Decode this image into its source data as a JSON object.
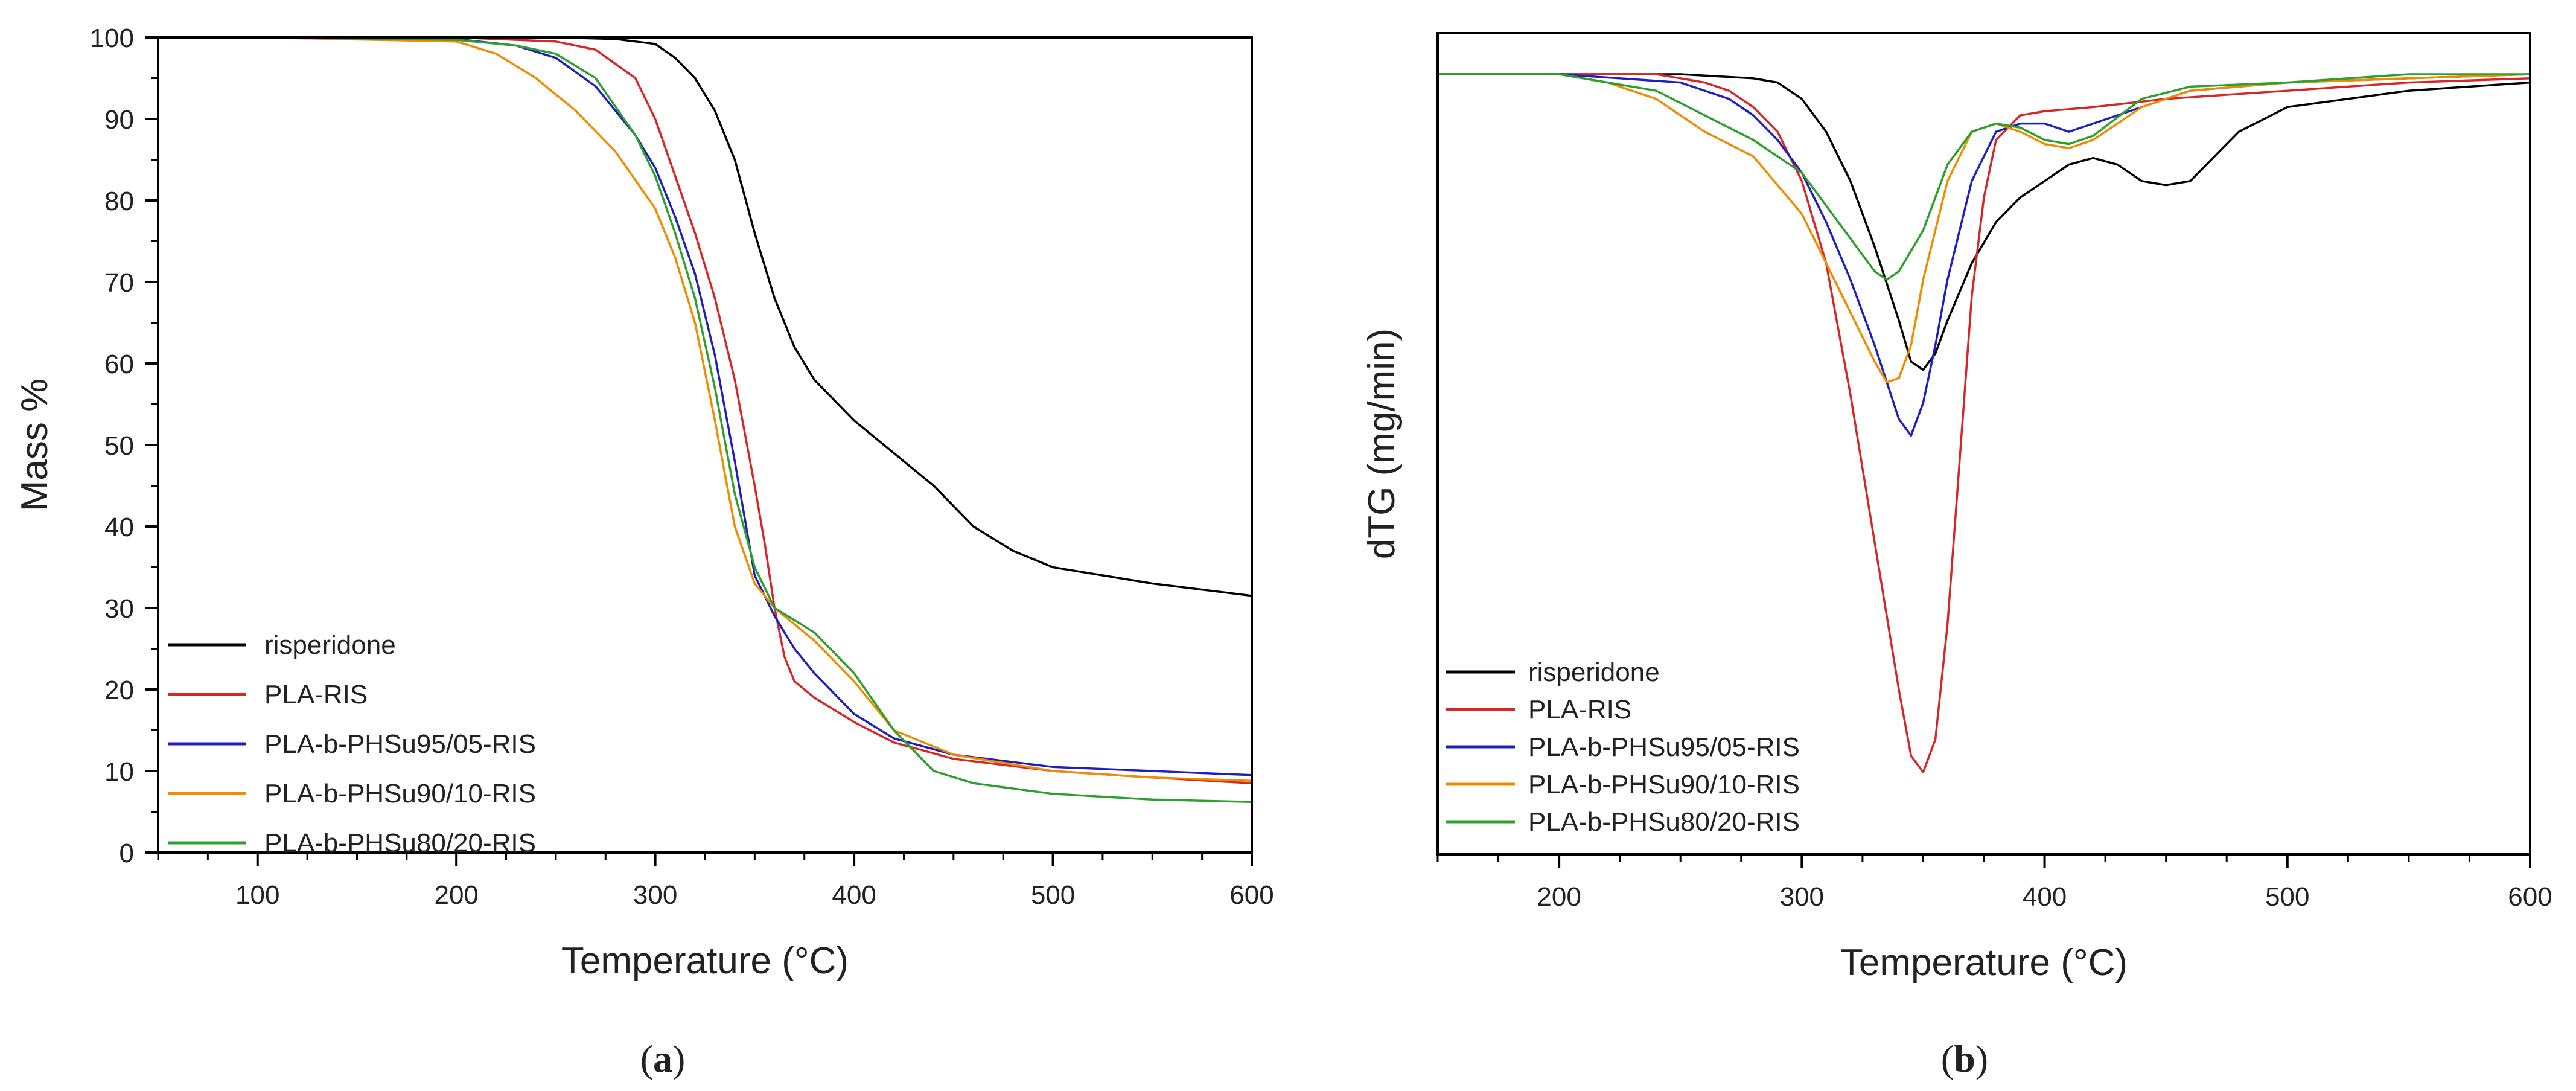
{
  "chart_data": [
    {
      "type": "line",
      "caption": "a",
      "xlabel": "Temperature (°C)",
      "ylabel": "Mass %",
      "xlim": [
        50,
        600
      ],
      "ylim": [
        0,
        100
      ],
      "xticks": [
        100,
        200,
        300,
        400,
        500,
        600
      ],
      "yticks": [
        0,
        10,
        20,
        30,
        40,
        50,
        60,
        70,
        80,
        90,
        100
      ],
      "legend_position": "bottom-left",
      "grid": false,
      "series": [
        {
          "name": "risperidone",
          "color": "#000000",
          "x": [
            50,
            100,
            200,
            250,
            280,
            300,
            310,
            320,
            330,
            340,
            350,
            360,
            370,
            380,
            400,
            420,
            440,
            460,
            480,
            500,
            550,
            600
          ],
          "y": [
            100,
            100,
            100,
            100,
            99.8,
            99.2,
            97.5,
            95,
            91,
            85,
            76,
            68,
            62,
            58,
            53,
            49,
            45,
            40,
            37,
            35,
            33,
            31.5
          ]
        },
        {
          "name": "PLA-RIS",
          "color": "#d62728",
          "x": [
            50,
            100,
            200,
            250,
            270,
            290,
            300,
            310,
            320,
            330,
            340,
            350,
            355,
            360,
            365,
            370,
            380,
            400,
            420,
            450,
            500,
            550,
            600
          ],
          "y": [
            100,
            100,
            100,
            99.5,
            98.5,
            95,
            90,
            83,
            76,
            68,
            58,
            45,
            38,
            30,
            24,
            21,
            19,
            16,
            13.5,
            11.5,
            10,
            9.2,
            8.5
          ]
        },
        {
          "name": "PLA-b-PHSu95/05-RIS",
          "color": "#1f1fbf",
          "x": [
            50,
            100,
            200,
            230,
            250,
            270,
            290,
            300,
            310,
            320,
            330,
            340,
            350,
            360,
            370,
            380,
            400,
            420,
            450,
            500,
            550,
            600
          ],
          "y": [
            100,
            100,
            99.8,
            99,
            97.5,
            94,
            88,
            84,
            78,
            71,
            61,
            48,
            34,
            29,
            25,
            22,
            17,
            14,
            12,
            10.5,
            10,
            9.5
          ]
        },
        {
          "name": "PLA-b-PHSu90/10-RIS",
          "color": "#f08c00",
          "x": [
            50,
            100,
            200,
            220,
            240,
            260,
            280,
            300,
            310,
            320,
            330,
            340,
            350,
            360,
            370,
            380,
            400,
            420,
            450,
            500,
            550,
            600
          ],
          "y": [
            100,
            100,
            99.5,
            98,
            95,
            91,
            86,
            79,
            73,
            65,
            53,
            40,
            33,
            30,
            28,
            26,
            21,
            15,
            12,
            10,
            9.2,
            8.8
          ]
        },
        {
          "name": "PLA-b-PHSu80/20-RIS",
          "color": "#2ca02c",
          "x": [
            50,
            100,
            200,
            230,
            250,
            270,
            290,
            300,
            310,
            320,
            330,
            340,
            350,
            360,
            370,
            380,
            400,
            420,
            440,
            460,
            500,
            550,
            600
          ],
          "y": [
            100,
            100,
            99.7,
            99,
            98,
            95,
            88,
            83,
            76,
            68,
            57,
            44,
            35,
            30,
            28.5,
            27,
            22,
            15,
            10,
            8.5,
            7.2,
            6.5,
            6.2
          ]
        }
      ]
    },
    {
      "type": "line",
      "caption": "b",
      "xlabel": "Temperature (°C)",
      "ylabel": "dTG (mg/min)",
      "xlim": [
        150,
        600
      ],
      "ylim": [
        0,
        100
      ],
      "y_tick_labels_shown": false,
      "xticks": [
        200,
        300,
        400,
        500,
        600
      ],
      "legend_position": "bottom-left",
      "grid": false,
      "series": [
        {
          "name": "risperidone",
          "color": "#000000",
          "x": [
            150,
            200,
            250,
            280,
            290,
            300,
            310,
            320,
            330,
            340,
            345,
            350,
            355,
            360,
            370,
            380,
            390,
            400,
            410,
            420,
            430,
            440,
            450,
            460,
            470,
            480,
            500,
            550,
            600
          ],
          "y": [
            95,
            95,
            95,
            94.5,
            94,
            92,
            88,
            82,
            74,
            65,
            60,
            59,
            61,
            65,
            72,
            77,
            80,
            82,
            84,
            84.8,
            84,
            82,
            81.5,
            82,
            85,
            88,
            91,
            93,
            94
          ]
        },
        {
          "name": "PLA-RIS",
          "color": "#d62728",
          "x": [
            150,
            200,
            240,
            260,
            270,
            280,
            290,
            300,
            310,
            320,
            330,
            340,
            345,
            350,
            355,
            360,
            365,
            370,
            375,
            380,
            390,
            400,
            420,
            450,
            500,
            550,
            600
          ],
          "y": [
            95,
            95,
            95,
            94,
            93,
            91,
            88,
            82,
            72,
            56,
            38,
            20,
            12,
            10,
            14,
            28,
            48,
            68,
            80,
            87,
            90,
            90.5,
            91,
            92,
            93,
            94,
            94.5
          ]
        },
        {
          "name": "PLA-b-PHSu95/05-RIS",
          "color": "#1f1fbf",
          "x": [
            150,
            200,
            250,
            270,
            280,
            290,
            300,
            310,
            320,
            330,
            340,
            345,
            350,
            355,
            360,
            370,
            380,
            390,
            400,
            410,
            420,
            440,
            460,
            500,
            550,
            600
          ],
          "y": [
            95,
            95,
            94,
            92,
            90,
            87,
            83,
            77,
            70,
            62,
            53,
            51,
            55,
            62,
            70,
            82,
            88,
            89,
            89,
            88,
            89,
            91,
            93,
            94,
            94.5,
            95
          ]
        },
        {
          "name": "PLA-b-PHSu90/10-RIS",
          "color": "#f08c00",
          "x": [
            150,
            200,
            220,
            240,
            260,
            280,
            300,
            310,
            320,
            330,
            335,
            340,
            345,
            350,
            360,
            370,
            380,
            390,
            400,
            410,
            420,
            440,
            460,
            500,
            550,
            600
          ],
          "y": [
            95,
            95,
            94,
            92,
            88,
            85,
            78,
            72,
            66,
            60,
            57.5,
            58,
            62,
            70,
            82,
            88,
            89,
            88,
            86.5,
            86,
            87,
            91,
            93,
            94,
            94.5,
            95
          ]
        },
        {
          "name": "PLA-b-PHSu80/20-RIS",
          "color": "#2ca02c",
          "x": [
            150,
            200,
            240,
            260,
            280,
            300,
            310,
            320,
            330,
            335,
            340,
            350,
            360,
            370,
            380,
            390,
            400,
            410,
            420,
            440,
            460,
            500,
            550,
            600
          ],
          "y": [
            95,
            95,
            93,
            90,
            87,
            83,
            79,
            75,
            71,
            70,
            71,
            76,
            84,
            88,
            89,
            88.5,
            87,
            86.5,
            87.5,
            92,
            93.5,
            94,
            95,
            95
          ]
        }
      ]
    }
  ]
}
